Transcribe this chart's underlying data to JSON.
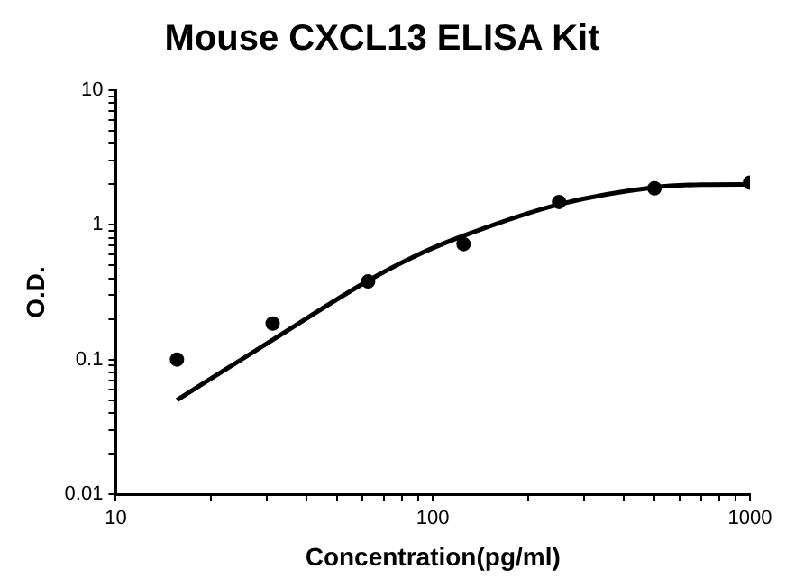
{
  "chart_data": {
    "type": "scatter",
    "title": "Mouse CXCL13 ELISA Kit",
    "xlabel": "Concentration(pg/ml)",
    "ylabel": "O.D.",
    "log": "xy",
    "grid": false,
    "legend": false,
    "marker": "circle",
    "xlim": [
      10,
      1000
    ],
    "ylim": [
      0.01,
      10
    ],
    "xticks": [
      10,
      {
        "value": 20,
        "label": null
      },
      {
        "value": 30,
        "label": null
      },
      {
        "value": 40,
        "label": null
      },
      {
        "value": 50,
        "label": null
      },
      {
        "value": 60,
        "label": null
      },
      {
        "value": 70,
        "label": null
      },
      {
        "value": 80,
        "label": null
      },
      {
        "value": 90,
        "label": null
      },
      100,
      {
        "value": 200,
        "label": null
      },
      {
        "value": 300,
        "label": null
      },
      {
        "value": 400,
        "label": null
      },
      {
        "value": 500,
        "label": null
      },
      {
        "value": 600,
        "label": null
      },
      {
        "value": 700,
        "label": null
      },
      {
        "value": 800,
        "label": null
      },
      {
        "value": 900,
        "label": null
      },
      1000
    ],
    "yticks": [
      {
        "value": 0.01,
        "label": "0.01"
      },
      {
        "value": 0.02,
        "label": null
      },
      {
        "value": 0.03,
        "label": null
      },
      {
        "value": 0.04,
        "label": null
      },
      {
        "value": 0.05,
        "label": null
      },
      {
        "value": 0.06,
        "label": null
      },
      {
        "value": 0.07,
        "label": null
      },
      {
        "value": 0.08,
        "label": null
      },
      {
        "value": 0.09,
        "label": null
      },
      {
        "value": 0.1,
        "label": "0.1"
      },
      {
        "value": 0.2,
        "label": null
      },
      {
        "value": 0.3,
        "label": null
      },
      {
        "value": 0.4,
        "label": null
      },
      {
        "value": 0.5,
        "label": null
      },
      {
        "value": 0.6,
        "label": null
      },
      {
        "value": 0.7,
        "label": null
      },
      {
        "value": 0.8,
        "label": null
      },
      {
        "value": 0.9,
        "label": null
      },
      1,
      {
        "value": 2,
        "label": null
      },
      {
        "value": 3,
        "label": null
      },
      {
        "value": 4,
        "label": null
      },
      {
        "value": 5,
        "label": null
      },
      {
        "value": 6,
        "label": null
      },
      {
        "value": 7,
        "label": null
      },
      {
        "value": 8,
        "label": null
      },
      {
        "value": 9,
        "label": null
      },
      10
    ],
    "series": [
      {
        "color": "#000000",
        "x": [
          15.6,
          31.25,
          62.5,
          125,
          250,
          500,
          1000
        ],
        "values": [
          0.1,
          0.185,
          0.38,
          0.72,
          1.48,
          1.87,
          2.06
        ]
      },
      {
        "type": "line",
        "color": "#000000",
        "marker": "none",
        "x": [
          15.6,
          31.25,
          62.5,
          87,
          125,
          250,
          500,
          700,
          1000
        ],
        "values": [
          0.05,
          0.14,
          0.385,
          0.58,
          0.83,
          1.42,
          1.9,
          1.99,
          2.0
        ]
      }
    ]
  }
}
